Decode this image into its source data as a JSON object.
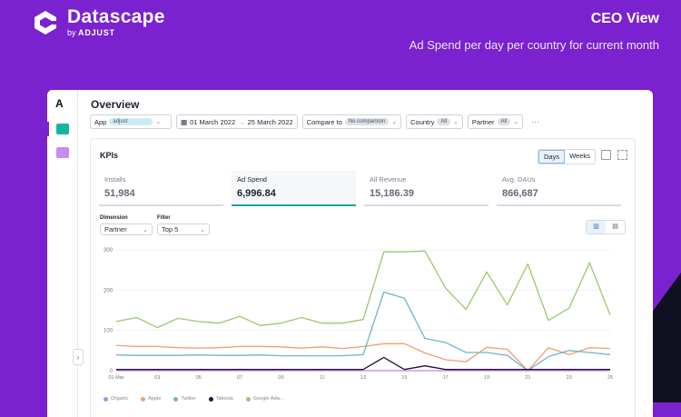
{
  "brand": {
    "name": "Datascape",
    "by": "by",
    "sub": "ADJUST"
  },
  "header": {
    "title": "CEO View",
    "subtitle": "Ad Spend per day per country for current month"
  },
  "rail": {
    "logo": "A",
    "items": [
      "chart-icon",
      "document-icon"
    ]
  },
  "page": {
    "title": "Overview"
  },
  "filters": {
    "app": {
      "label": "App",
      "value": "adjust"
    },
    "date": {
      "start": "01 March 2022",
      "end": "25 March 2022",
      "sep": "→"
    },
    "compare": {
      "label": "Compare to",
      "value": "No comparison"
    },
    "country": {
      "label": "Country",
      "value": "All"
    },
    "partner": {
      "label": "Partner",
      "value": "All"
    },
    "more": "···"
  },
  "kpis": {
    "title": "KPIs",
    "toggle": [
      "Days",
      "Weeks"
    ],
    "cards": [
      {
        "label": "Installs",
        "value": "51,984"
      },
      {
        "label": "Ad Spend",
        "value": "6,996.84"
      },
      {
        "label": "All Revenue",
        "value": "15,186.39"
      },
      {
        "label": "Avg. DAUs",
        "value": "866,687"
      }
    ]
  },
  "controls": {
    "dimension_label": "Dimension",
    "dimension_value": "Partner",
    "filter_label": "Filter",
    "filter_value": "Top 5"
  },
  "colors": {
    "organic": "#b48be6",
    "apple": "#f0a070",
    "twitter": "#6eb7c4",
    "taboola": "#2a0a3a",
    "google": "#9cc870"
  },
  "chart_data": {
    "type": "line",
    "x": [
      "01 Mar",
      "02",
      "03",
      "04",
      "05",
      "06",
      "07",
      "08",
      "09",
      "10",
      "11",
      "12",
      "13",
      "14",
      "15",
      "16",
      "17",
      "18",
      "19",
      "20",
      "21",
      "22",
      "23",
      "24",
      "25"
    ],
    "x_ticks": [
      "01 Mar",
      "03",
      "05",
      "07",
      "09",
      "11",
      "13",
      "15",
      "17",
      "19",
      "21",
      "23",
      "25"
    ],
    "y_ticks": [
      0,
      100,
      200,
      300
    ],
    "ylim": [
      0,
      300
    ],
    "grid": true,
    "series": [
      {
        "name": "Organic",
        "color": "#b48be6",
        "values": [
          0,
          0,
          0,
          0,
          0,
          0,
          0,
          0,
          0,
          0,
          0,
          0,
          0,
          0,
          0,
          0,
          0,
          0,
          0,
          0,
          0,
          0,
          0,
          0,
          0
        ]
      },
      {
        "name": "Apple",
        "color": "#f0a070",
        "values": [
          63,
          60,
          60,
          57,
          56,
          57,
          60,
          60,
          59,
          56,
          59,
          55,
          60,
          67,
          67,
          44,
          27,
          22,
          58,
          53,
          0,
          57,
          40,
          57,
          55
        ]
      },
      {
        "name": "Twitter",
        "color": "#6eb7c4",
        "values": [
          39,
          38,
          38,
          38,
          39,
          38,
          38,
          39,
          37,
          37,
          37,
          37,
          40,
          195,
          180,
          80,
          70,
          45,
          45,
          38,
          0,
          35,
          50,
          45,
          40
        ]
      },
      {
        "name": "Taboola",
        "color": "#2a0a3a",
        "values": [
          3,
          3,
          3,
          3,
          3,
          3,
          3,
          3,
          3,
          3,
          3,
          3,
          3,
          33,
          3,
          12,
          3,
          3,
          3,
          3,
          3,
          3,
          3,
          3,
          3
        ]
      },
      {
        "name": "Google Adw...",
        "color": "#9cc870",
        "values": [
          122,
          132,
          107,
          130,
          122,
          118,
          135,
          112,
          118,
          132,
          118,
          118,
          127,
          295,
          295,
          297,
          205,
          152,
          245,
          163,
          265,
          125,
          155,
          268,
          138
        ]
      }
    ]
  }
}
